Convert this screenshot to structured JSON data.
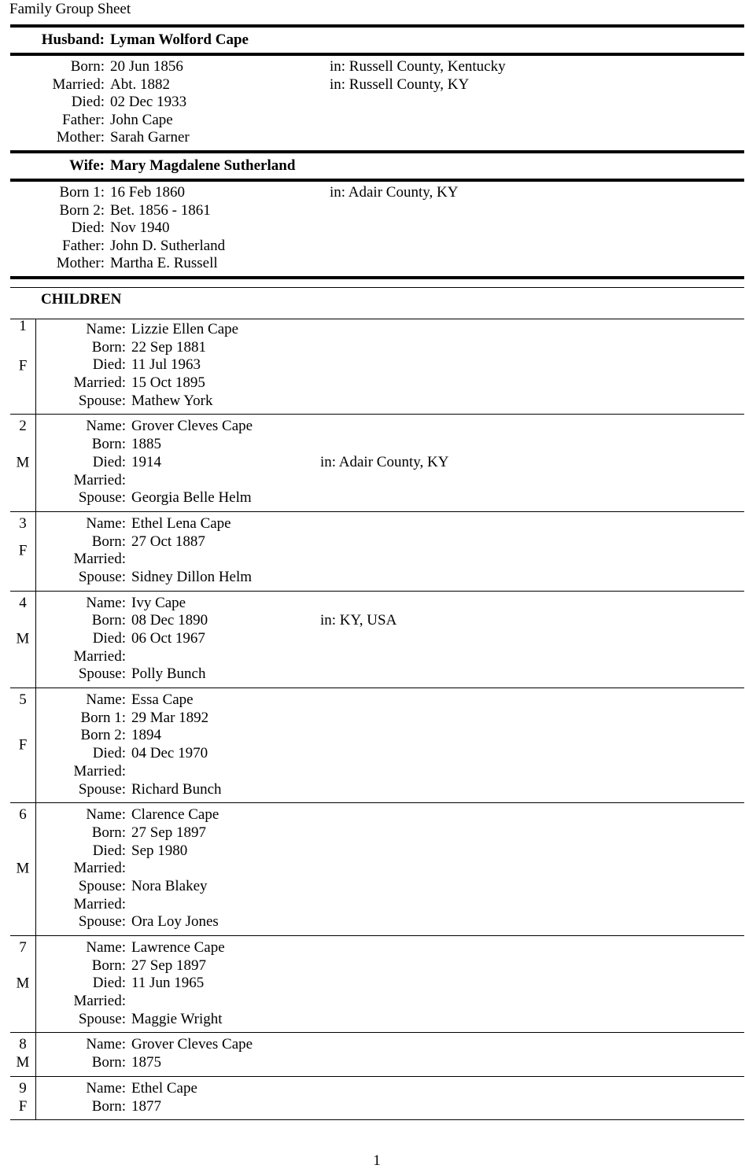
{
  "title": "Family Group Sheet",
  "husband": {
    "label": "Husband:",
    "name": "Lyman Wolford Cape",
    "facts": [
      {
        "label": "Born:",
        "value": "20 Jun 1856",
        "place": "in: Russell County, Kentucky"
      },
      {
        "label": "Married:",
        "value": "Abt. 1882",
        "place": "in: Russell County, KY"
      },
      {
        "label": "Died:",
        "value": "02 Dec 1933",
        "place": ""
      },
      {
        "label": "Father:",
        "value": "John Cape",
        "place": ""
      },
      {
        "label": "Mother:",
        "value": "Sarah Garner",
        "place": ""
      }
    ]
  },
  "wife": {
    "label": "Wife:",
    "name": "Mary Magdalene Sutherland",
    "facts": [
      {
        "label": "Born 1:",
        "value": "16 Feb 1860",
        "place": "in: Adair County, KY"
      },
      {
        "label": "Born 2:",
        "value": "Bet. 1856 - 1861",
        "place": ""
      },
      {
        "label": "Died:",
        "value": "Nov 1940",
        "place": ""
      },
      {
        "label": "Father:",
        "value": "John D. Sutherland",
        "place": ""
      },
      {
        "label": "Mother:",
        "value": "Martha E. Russell",
        "place": ""
      }
    ]
  },
  "children_heading": "CHILDREN",
  "children": [
    {
      "num": "1",
      "gender": "F",
      "facts": [
        {
          "label": "Name:",
          "value": "Lizzie Ellen Cape",
          "place": ""
        },
        {
          "label": "Born:",
          "value": "22 Sep 1881",
          "place": ""
        },
        {
          "label": "Died:",
          "value": "11 Jul 1963",
          "place": ""
        },
        {
          "label": "Married:",
          "value": "15 Oct 1895",
          "place": ""
        },
        {
          "label": "Spouse:",
          "value": "Mathew York",
          "place": ""
        }
      ]
    },
    {
      "num": "2",
      "gender": "M",
      "facts": [
        {
          "label": "Name:",
          "value": "Grover Cleves Cape",
          "place": ""
        },
        {
          "label": "Born:",
          "value": "1885",
          "place": ""
        },
        {
          "label": "Died:",
          "value": "1914",
          "place": "in: Adair County, KY"
        },
        {
          "label": "Married:",
          "value": "",
          "place": ""
        },
        {
          "label": "Spouse:",
          "value": "Georgia Belle Helm",
          "place": ""
        }
      ]
    },
    {
      "num": "3",
      "gender": "F",
      "facts": [
        {
          "label": "Name:",
          "value": "Ethel Lena Cape",
          "place": ""
        },
        {
          "label": "Born:",
          "value": "27 Oct 1887",
          "place": ""
        },
        {
          "label": "Married:",
          "value": "",
          "place": ""
        },
        {
          "label": "Spouse:",
          "value": "Sidney Dillon Helm",
          "place": ""
        }
      ]
    },
    {
      "num": "4",
      "gender": "M",
      "facts": [
        {
          "label": "Name:",
          "value": "Ivy Cape",
          "place": ""
        },
        {
          "label": "Born:",
          "value": "08 Dec 1890",
          "place": "in: KY, USA"
        },
        {
          "label": "Died:",
          "value": "06 Oct 1967",
          "place": ""
        },
        {
          "label": "Married:",
          "value": "",
          "place": ""
        },
        {
          "label": "Spouse:",
          "value": "Polly Bunch",
          "place": ""
        }
      ]
    },
    {
      "num": "5",
      "gender": "F",
      "facts": [
        {
          "label": "Name:",
          "value": "Essa Cape",
          "place": ""
        },
        {
          "label": "Born 1:",
          "value": "29 Mar 1892",
          "place": ""
        },
        {
          "label": "Born 2:",
          "value": "1894",
          "place": ""
        },
        {
          "label": "Died:",
          "value": "04 Dec 1970",
          "place": ""
        },
        {
          "label": "Married:",
          "value": "",
          "place": ""
        },
        {
          "label": "Spouse:",
          "value": "Richard Bunch",
          "place": ""
        }
      ]
    },
    {
      "num": "6",
      "gender": "M",
      "facts": [
        {
          "label": "Name:",
          "value": "Clarence Cape",
          "place": ""
        },
        {
          "label": "Born:",
          "value": "27 Sep 1897",
          "place": ""
        },
        {
          "label": "Died:",
          "value": "Sep 1980",
          "place": ""
        },
        {
          "label": "Married:",
          "value": "",
          "place": ""
        },
        {
          "label": "Spouse:",
          "value": "Nora Blakey",
          "place": ""
        },
        {
          "label": "Married:",
          "value": "",
          "place": ""
        },
        {
          "label": "Spouse:",
          "value": "Ora Loy Jones",
          "place": ""
        }
      ]
    },
    {
      "num": "7",
      "gender": "M",
      "facts": [
        {
          "label": "Name:",
          "value": "Lawrence Cape",
          "place": ""
        },
        {
          "label": "Born:",
          "value": "27 Sep 1897",
          "place": ""
        },
        {
          "label": "Died:",
          "value": "11 Jun 1965",
          "place": ""
        },
        {
          "label": "Married:",
          "value": "",
          "place": ""
        },
        {
          "label": "Spouse:",
          "value": "Maggie Wright",
          "place": ""
        }
      ]
    },
    {
      "num": "8",
      "gender": "M",
      "facts": [
        {
          "label": "Name:",
          "value": "Grover Cleves Cape",
          "place": ""
        },
        {
          "label": "Born:",
          "value": "1875",
          "place": ""
        }
      ]
    },
    {
      "num": "9",
      "gender": "F",
      "facts": [
        {
          "label": "Name:",
          "value": "Ethel Cape",
          "place": ""
        },
        {
          "label": "Born:",
          "value": "1877",
          "place": ""
        }
      ]
    }
  ],
  "page_number": "1"
}
